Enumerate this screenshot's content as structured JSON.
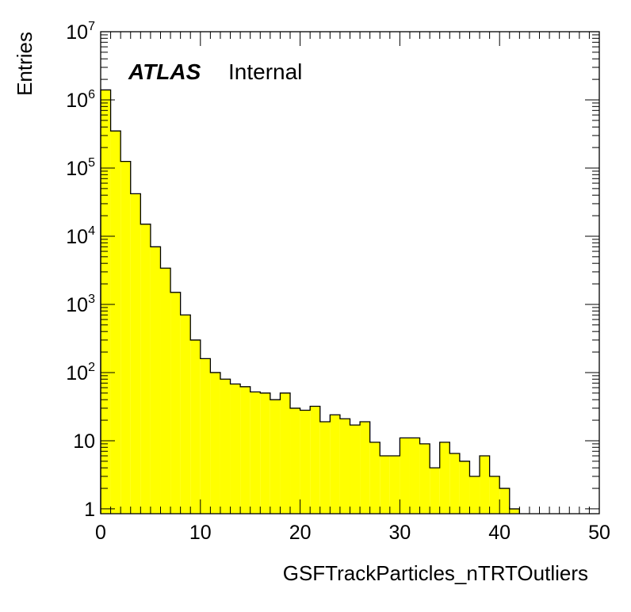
{
  "chart_data": {
    "type": "bar",
    "style": "histogram",
    "fill_color": "#ffff00",
    "line_color": "#000000",
    "xlabel": "GSFTrackParticles_nTRTOutliers",
    "ylabel": "Entries",
    "xlim": [
      0,
      50
    ],
    "ylim": [
      0.85,
      10000000
    ],
    "log_y": true,
    "grid": false,
    "legend": "none",
    "atlas_label": "ATLAS",
    "status_label": "Internal",
    "x_ticks": [
      "0",
      "10",
      "20",
      "30",
      "40",
      "50"
    ],
    "bin_width": 1,
    "bin_low_edges": [
      0,
      1,
      2,
      3,
      4,
      5,
      6,
      7,
      8,
      9,
      10,
      11,
      12,
      13,
      14,
      15,
      16,
      17,
      18,
      19,
      20,
      21,
      22,
      23,
      24,
      25,
      26,
      27,
      28,
      29,
      30,
      31,
      32,
      33,
      34,
      35,
      36,
      37,
      38,
      39,
      40,
      41
    ],
    "values": [
      1400000,
      350000,
      125000,
      42000,
      15000,
      7000,
      3400,
      1500,
      700,
      300,
      160,
      100,
      80,
      68,
      62,
      52,
      50,
      40,
      50,
      30,
      28,
      32,
      19,
      24,
      21,
      17,
      19,
      9.5,
      6,
      6,
      11,
      11,
      9,
      4,
      9.5,
      6.5,
      5,
      3,
      6,
      3,
      2,
      1
    ]
  }
}
